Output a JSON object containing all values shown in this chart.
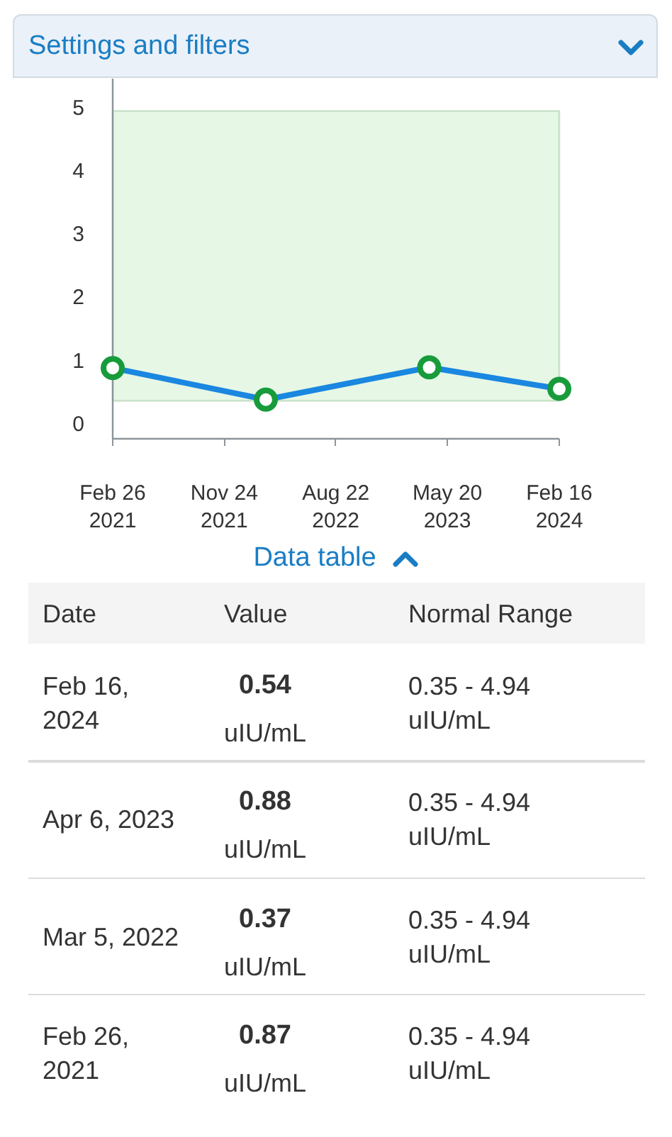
{
  "chart_data": [
    {
      "type": "line",
      "title": "Settings and filters",
      "x": [
        "2021-02-26",
        "2022-03-05",
        "2023-04-06",
        "2024-02-16"
      ],
      "values": [
        0.87,
        0.37,
        0.88,
        0.54
      ],
      "color": "#1a87e0",
      "colors": [
        "#179b3b",
        "#179b3b",
        "#179b3b",
        "#179b3b"
      ],
      "marker": "circle",
      "line_style": "solid",
      "xlim": [
        "2021-02-26",
        "2024-02-16"
      ],
      "xticks": [
        {
          "value": "2021-02-26",
          "label": "Feb 26\n2021"
        },
        {
          "value": "2021-11-24",
          "label": "Nov 24\n2021"
        },
        {
          "value": "2022-08-22",
          "label": "Aug 22\n2022"
        },
        {
          "value": "2023-05-20",
          "label": "May 20\n2023"
        },
        {
          "value": "2024-02-16",
          "label": "Feb 16\n2024"
        }
      ],
      "ylim": [
        -0.25,
        5.45
      ],
      "yticks": [
        0,
        1,
        2,
        3,
        4,
        5
      ],
      "bands": [
        {
          "axis": "y",
          "from": 0.35,
          "to": 4.94,
          "color": "#e6f7e6"
        }
      ]
    },
    {
      "type": "other",
      "title": "Data table",
      "annotations": [
        "Date",
        "Value",
        "Normal Range",
        "Feb 16, 2024",
        "0.54",
        "uIU/mL",
        "0.35 - 4.94 uIU/mL",
        "Apr 6, 2023",
        "0.88",
        "uIU/mL",
        "0.35 - 4.94 uIU/mL",
        "Mar 5, 2022",
        "0.37",
        "uIU/mL",
        "0.35 - 4.94 uIU/mL",
        "Feb 26, 2021",
        "0.87",
        "uIU/mL",
        "0.35 - 4.94 uIU/mL"
      ]
    }
  ]
}
